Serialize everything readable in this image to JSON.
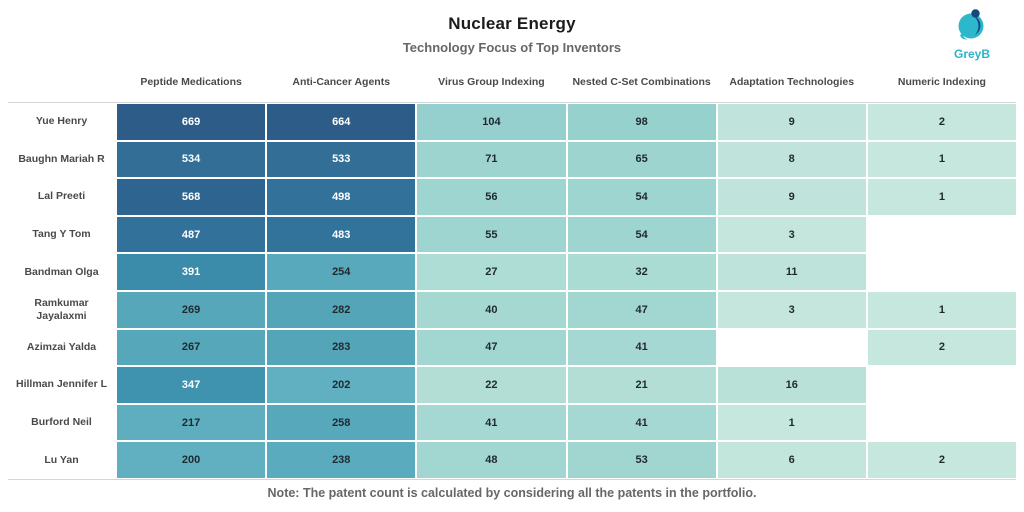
{
  "header": {
    "title": "Nuclear Energy",
    "subtitle": "Technology Focus of Top Inventors",
    "logo_text": "GreyB"
  },
  "note": "Note: The patent count is calculated by considering all the patents in the portfolio.",
  "colors": {
    "logo_teal": "#2ab5c8",
    "logo_navy": "#16477e",
    "title_text": "#1c1c1c",
    "subtitle_text": "#676767",
    "header_text": "#4a4a4a",
    "cell_text_dark": "#1e2a2e",
    "cell_text_light": "#ffffff",
    "grid_line": "#d6d6d6"
  },
  "chart_data": {
    "type": "heatmap",
    "title": "Nuclear Energy",
    "subtitle": "Technology Focus of Top Inventors",
    "columns": [
      "Peptide Medications",
      "Anti-Cancer Agents",
      "Virus Group Indexing",
      "Nested C-Set Combinations",
      "Adaptation Technologies",
      "Numeric Indexing"
    ],
    "rows": [
      {
        "name": "Yue Henry",
        "values": [
          669,
          664,
          104,
          98,
          9,
          2
        ]
      },
      {
        "name": "Baughn Mariah R",
        "values": [
          534,
          533,
          71,
          65,
          8,
          1
        ]
      },
      {
        "name": "Lal Preeti",
        "values": [
          568,
          498,
          56,
          54,
          9,
          1
        ]
      },
      {
        "name": "Tang Y Tom",
        "values": [
          487,
          483,
          55,
          54,
          3,
          null
        ]
      },
      {
        "name": "Bandman Olga",
        "values": [
          391,
          254,
          27,
          32,
          11,
          null
        ]
      },
      {
        "name": "Ramkumar Jayalaxmi",
        "values": [
          269,
          282,
          40,
          47,
          3,
          1
        ]
      },
      {
        "name": "Azimzai Yalda",
        "values": [
          267,
          283,
          47,
          41,
          null,
          2
        ]
      },
      {
        "name": "Hillman Jennifer L",
        "values": [
          347,
          202,
          22,
          21,
          16,
          null
        ]
      },
      {
        "name": "Burford Neil",
        "values": [
          217,
          258,
          41,
          41,
          1,
          null
        ]
      },
      {
        "name": "Lu Yan",
        "values": [
          200,
          238,
          48,
          53,
          6,
          2
        ]
      }
    ],
    "colormap": {
      "stops": [
        [
          1,
          "#c6e7de"
        ],
        [
          11,
          "#bee3da"
        ],
        [
          21,
          "#b3ded6"
        ],
        [
          32,
          "#aadcd4"
        ],
        [
          41,
          "#a5d8d2"
        ],
        [
          55,
          "#9fd5d0"
        ],
        [
          71,
          "#9dd4cf"
        ],
        [
          104,
          "#95d0ce"
        ],
        [
          200,
          "#61b0c1"
        ],
        [
          238,
          "#5aabbd"
        ],
        [
          283,
          "#55a5b9"
        ],
        [
          347,
          "#3f93ae"
        ],
        [
          391,
          "#3a8caa"
        ],
        [
          487,
          "#32729a"
        ],
        [
          534,
          "#326e96"
        ],
        [
          568,
          "#2e6590"
        ],
        [
          669,
          "#2c5c87"
        ]
      ],
      "text_light_threshold": 340,
      "null_cell_color": "#ffffff"
    },
    "legend_position": "none",
    "grid": "white-gaps"
  }
}
